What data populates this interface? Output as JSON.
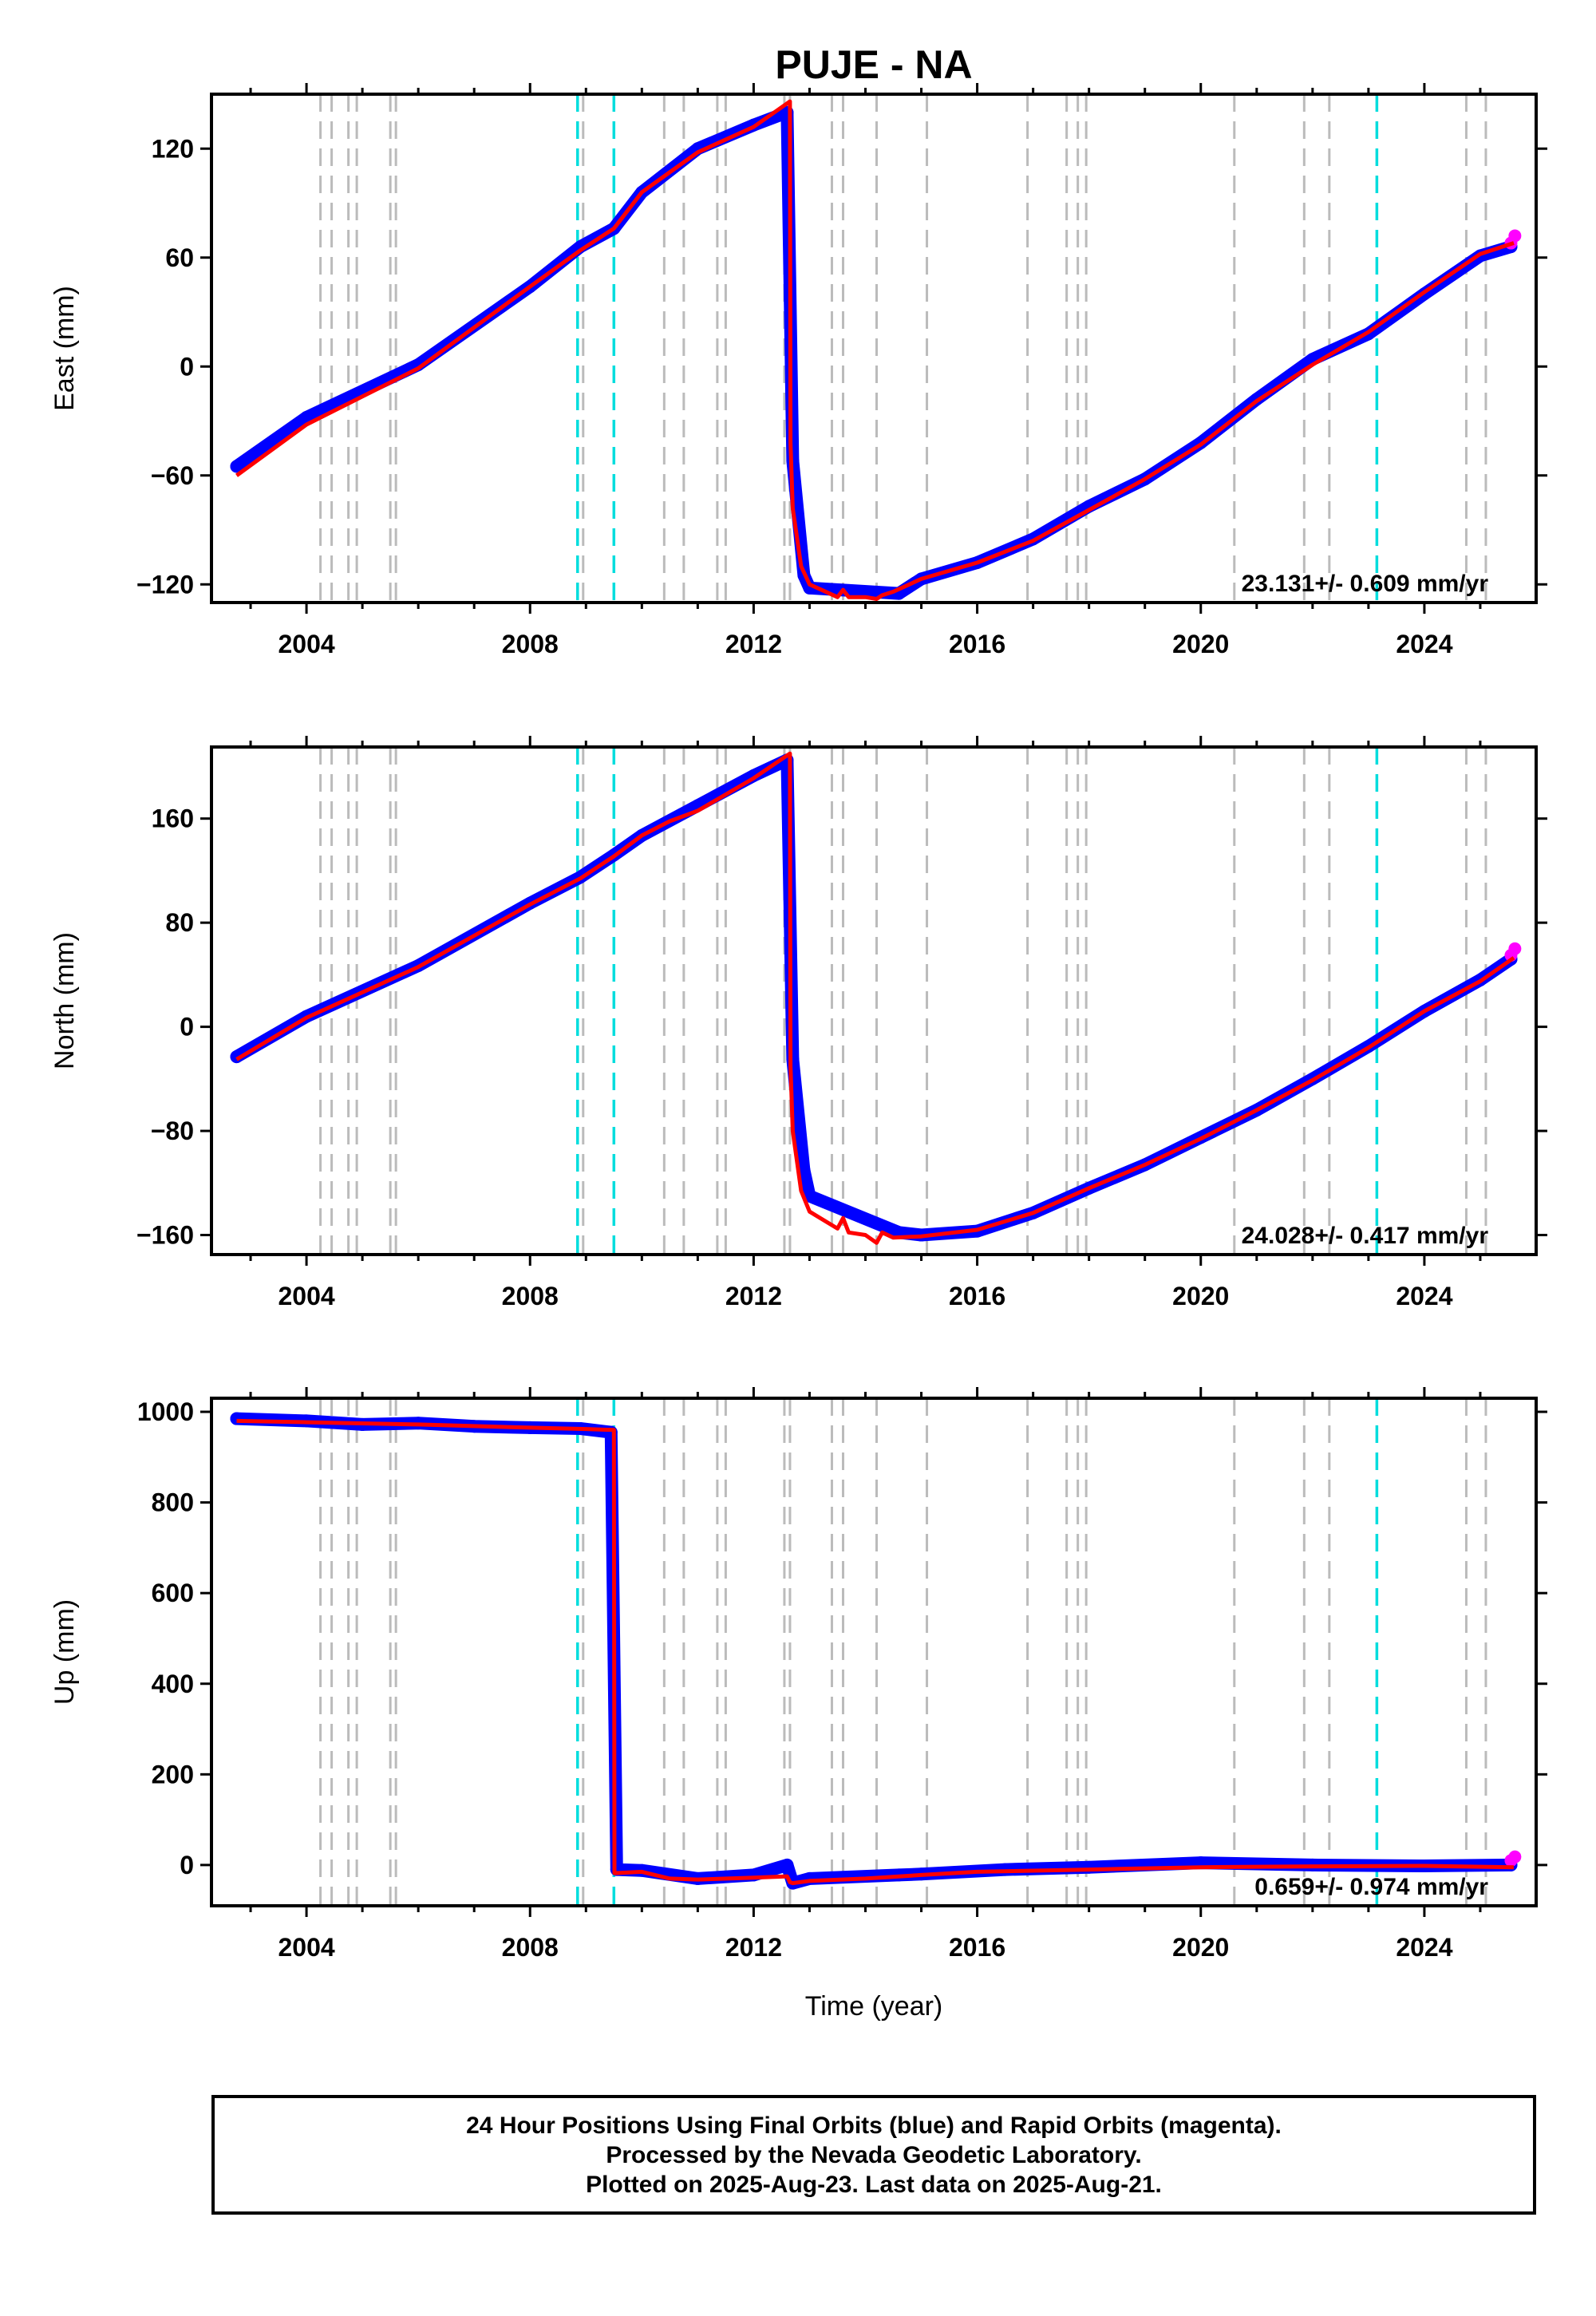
{
  "chart_data": {
    "type": "line",
    "title": "PUJE - NA",
    "xlabel": "Time (year)",
    "xlim": [
      2002.3,
      2026.0
    ],
    "xticks": [
      2004,
      2008,
      2012,
      2016,
      2020,
      2024
    ],
    "colors": {
      "final_orbits": "#0000ff",
      "rapid_orbits": "#ff00ff",
      "model": "#ff0000",
      "equipment_change": "#bbbbbb",
      "earthquake": "#00dddd"
    },
    "event_lines": {
      "gray": [
        2004.25,
        2004.45,
        2004.75,
        2004.9,
        2005.5,
        2005.6,
        2008.95,
        2010.4,
        2010.75,
        2011.35,
        2011.5,
        2012.55,
        2012.65,
        2013.4,
        2013.6,
        2014.2,
        2015.1,
        2016.9,
        2017.6,
        2017.8,
        2017.95,
        2020.6,
        2021.85,
        2022.3,
        2024.75,
        2025.1
      ],
      "cyan": [
        2008.85,
        2009.5,
        2023.15
      ]
    },
    "panels": [
      {
        "ylabel": "East (mm)",
        "ylim": [
          -130,
          150
        ],
        "yticks": [
          -120,
          -60,
          0,
          60,
          120
        ],
        "rate_label": "23.131+/- 0.609 mm/yr",
        "final_orbits": {
          "x": [
            2002.75,
            2004.0,
            2006.0,
            2008.0,
            2008.9,
            2009.5,
            2010.0,
            2011.0,
            2012.0,
            2012.6,
            2012.7,
            2012.9,
            2013.0,
            2014.6,
            2015.0,
            2016.0,
            2017.0,
            2018.0,
            2019.0,
            2020.0,
            2021.0,
            2022.0,
            2023.0,
            2024.0,
            2025.0,
            2025.55
          ],
          "y": [
            -55,
            -28,
            1,
            44,
            66,
            76,
            96,
            120,
            133,
            140,
            -52,
            -115,
            -122,
            -125,
            -117,
            -108,
            -95,
            -77,
            -62,
            -42,
            -18,
            4,
            18,
            40,
            61,
            66
          ]
        },
        "rapid_orbits": {
          "x": [
            2025.55,
            2025.62
          ],
          "y": [
            68,
            72
          ]
        },
        "model": {
          "x": [
            2002.75,
            2004.0,
            2006.0,
            2008.0,
            2008.9,
            2009.5,
            2010.0,
            2010.5,
            2011.0,
            2012.0,
            2012.65,
            2012.66,
            2012.7,
            2012.85,
            2013.0,
            2013.5,
            2013.6,
            2013.7,
            2014.0,
            2014.2,
            2014.3,
            2014.5,
            2015.0,
            2016.0,
            2017.0,
            2018.0,
            2019.0,
            2020.0,
            2021.0,
            2022.0,
            2023.0,
            2024.0,
            2025.0,
            2025.6
          ],
          "y": [
            -60,
            -32,
            -1,
            44,
            64,
            76,
            96,
            107,
            118,
            132,
            146,
            -42,
            -78,
            -110,
            -120,
            -127,
            -123,
            -127,
            -127,
            -128,
            -126,
            -124,
            -117,
            -108,
            -96,
            -79,
            -62,
            -43,
            -19,
            1,
            19,
            41,
            62,
            68
          ]
        }
      },
      {
        "ylabel": "North (mm)",
        "ylim": [
          -175,
          215
        ],
        "yticks": [
          -160,
          -80,
          0,
          80,
          160
        ],
        "rate_label": "24.028+/- 0.417 mm/yr",
        "final_orbits": {
          "x": [
            2002.75,
            2004.0,
            2006.0,
            2008.0,
            2008.9,
            2009.5,
            2010.0,
            2011.0,
            2012.0,
            2012.6,
            2012.7,
            2012.9,
            2013.0,
            2014.6,
            2015.0,
            2016.0,
            2017.0,
            2018.0,
            2019.0,
            2020.0,
            2021.0,
            2022.0,
            2023.0,
            2024.0,
            2025.0,
            2025.55
          ],
          "y": [
            -23,
            8,
            47,
            95,
            115,
            132,
            147,
            170,
            193,
            205,
            -25,
            -110,
            -130,
            -158,
            -160,
            -157,
            -143,
            -124,
            -106,
            -85,
            -64,
            -40,
            -15,
            12,
            36,
            52
          ]
        },
        "rapid_orbits": {
          "x": [
            2025.55,
            2025.62
          ],
          "y": [
            55,
            60
          ]
        },
        "model": {
          "x": [
            2002.75,
            2004.0,
            2006.0,
            2008.0,
            2008.9,
            2009.5,
            2010.0,
            2010.5,
            2011.0,
            2012.0,
            2012.65,
            2012.66,
            2012.7,
            2012.85,
            2013.0,
            2013.5,
            2013.6,
            2013.7,
            2014.0,
            2014.2,
            2014.3,
            2014.5,
            2015.0,
            2016.0,
            2017.0,
            2018.0,
            2019.0,
            2020.0,
            2021.0,
            2022.0,
            2023.0,
            2024.0,
            2025.0,
            2025.6
          ],
          "y": [
            -25,
            7,
            46,
            94,
            114,
            131,
            147,
            158,
            166,
            191,
            210,
            -30,
            -80,
            -126,
            -142,
            -155,
            -147,
            -158,
            -160,
            -166,
            -158,
            -162,
            -161,
            -156,
            -143,
            -124,
            -106,
            -86,
            -64,
            -41,
            -16,
            12,
            35,
            53
          ]
        }
      },
      {
        "ylabel": "Up (mm)",
        "ylim": [
          -90,
          1030
        ],
        "yticks": [
          0,
          200,
          400,
          600,
          800,
          1000
        ],
        "rate_label": "0.659+/- 0.974 mm/yr",
        "final_orbits": {
          "x": [
            2002.75,
            2004.0,
            2005.0,
            2006.0,
            2007.0,
            2008.0,
            2008.9,
            2009.45,
            2009.55,
            2010.0,
            2011.0,
            2012.0,
            2012.6,
            2012.7,
            2013.0,
            2014.6,
            2015.0,
            2016.5,
            2018.0,
            2020.0,
            2022.0,
            2024.0,
            2025.55
          ],
          "y": [
            985,
            980,
            972,
            975,
            968,
            965,
            963,
            955,
            -10,
            -12,
            -30,
            -22,
            0,
            -40,
            -30,
            -22,
            -20,
            -10,
            -5,
            5,
            0,
            -2,
            0
          ]
        },
        "rapid_orbits": {
          "x": [
            2025.55,
            2025.62
          ],
          "y": [
            10,
            18
          ]
        },
        "model": {
          "x": [
            2002.75,
            2004.0,
            2006.0,
            2008.0,
            2009.0,
            2009.5,
            2009.51,
            2010.0,
            2010.5,
            2011.0,
            2012.0,
            2012.6,
            2012.65,
            2012.7,
            2013.0,
            2014.0,
            2015.0,
            2016.0,
            2018.0,
            2020.0,
            2022.0,
            2024.0,
            2025.6
          ],
          "y": [
            980,
            977,
            972,
            965,
            962,
            960,
            -18,
            -15,
            -30,
            -32,
            -28,
            -25,
            -38,
            -40,
            -35,
            -30,
            -22,
            -15,
            -10,
            -5,
            -3,
            -2,
            -5
          ]
        }
      }
    ]
  },
  "footer": {
    "line1": "24 Hour Positions Using Final Orbits (blue) and Rapid Orbits (magenta).",
    "line2": "Processed by the Nevada Geodetic Laboratory.",
    "line3": "Plotted on 2025-Aug-23. Last data on 2025-Aug-21."
  }
}
